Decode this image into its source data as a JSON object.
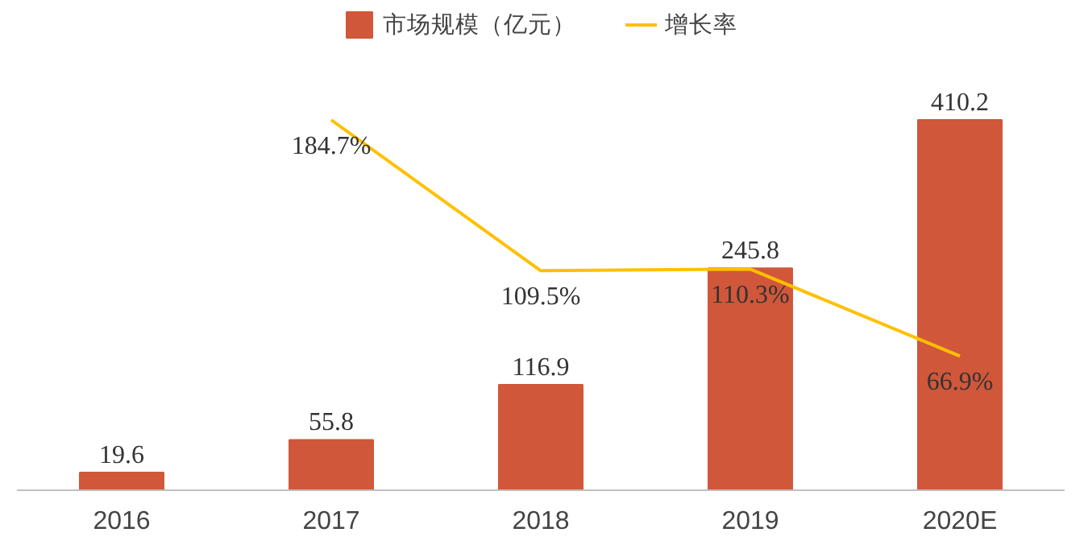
{
  "chart_data": {
    "type": "bar",
    "categories": [
      "2016",
      "2017",
      "2018",
      "2019",
      "2020E"
    ],
    "data_labels": true,
    "legend": "top",
    "series": [
      {
        "name": "市场规模（亿元）",
        "color": "#d0573a",
        "values": [
          19.6,
          55.8,
          116.9,
          245.8,
          410.2
        ]
      },
      {
        "name": "增长率",
        "type": "line",
        "axis": "y2",
        "color": "#ffc000",
        "values": [
          null,
          184.7,
          109.5,
          110.3,
          66.9
        ],
        "value_labels": [
          null,
          "184.7%",
          "109.5%",
          "110.3%",
          "66.9%"
        ]
      }
    ]
  }
}
